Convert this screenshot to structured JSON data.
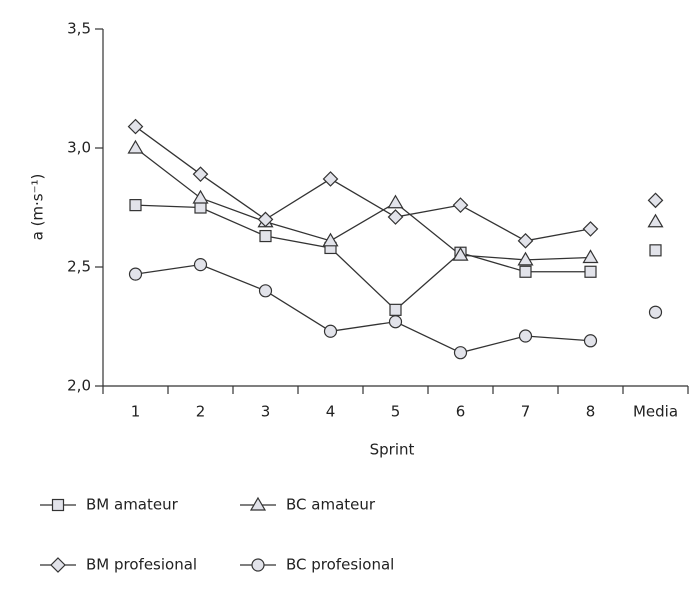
{
  "chart_data": {
    "type": "line",
    "y_label": "a (m·s⁻¹)",
    "x_label": "Sprint",
    "categories": [
      "1",
      "2",
      "3",
      "4",
      "5",
      "6",
      "7",
      "8"
    ],
    "summary_label": "Media",
    "ylim": [
      2.0,
      3.5
    ],
    "yticks": [
      {
        "value": 2.0,
        "label": "2,0"
      },
      {
        "value": 2.5,
        "label": "2,5"
      },
      {
        "value": 3.0,
        "label": "3,0"
      },
      {
        "value": 3.5,
        "label": "3,5"
      }
    ],
    "series": [
      {
        "name": "BM amateur",
        "marker": "square",
        "color": "#333333",
        "fill": "#e2e3ea",
        "values": [
          2.76,
          2.75,
          2.63,
          2.58,
          2.32,
          2.56,
          2.48,
          2.48
        ],
        "summary_value": 2.57
      },
      {
        "name": "BC amateur",
        "marker": "triangle",
        "color": "#333333",
        "fill": "#e2e3ea",
        "values": [
          3.0,
          2.79,
          2.69,
          2.61,
          2.77,
          2.55,
          2.53,
          2.54
        ],
        "summary_value": 2.69
      },
      {
        "name": "BM profesional",
        "marker": "diamond",
        "color": "#333333",
        "fill": "#e2e3ea",
        "values": [
          3.09,
          2.89,
          2.7,
          2.87,
          2.71,
          2.76,
          2.61,
          2.66
        ],
        "summary_value": 2.78
      },
      {
        "name": "BC profesional",
        "marker": "circle",
        "color": "#333333",
        "fill": "#e2e3ea",
        "values": [
          2.47,
          2.51,
          2.4,
          2.23,
          2.27,
          2.14,
          2.21,
          2.19
        ],
        "summary_value": 2.31
      }
    ]
  }
}
